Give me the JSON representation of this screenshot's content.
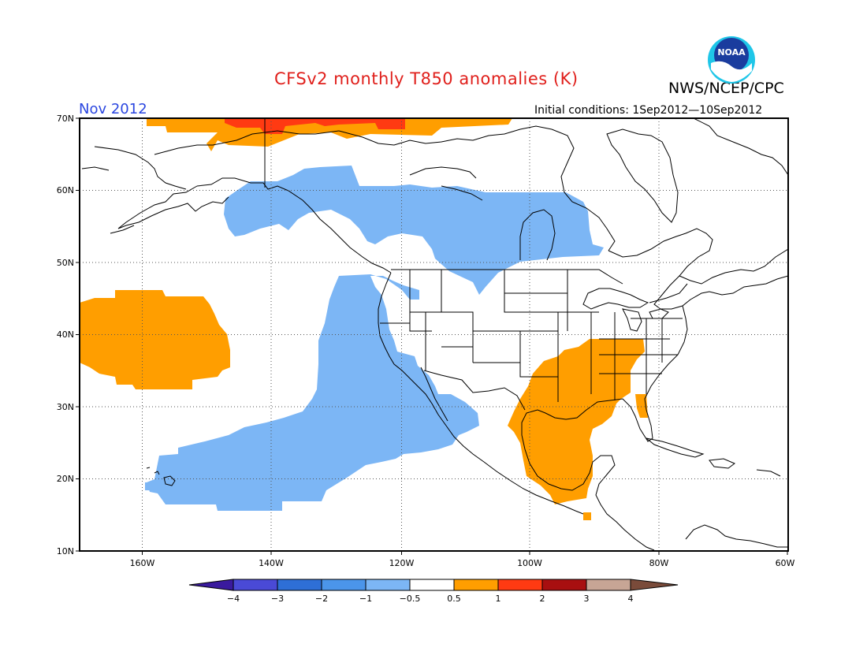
{
  "title": "CFSv2 monthly T850 anomalies (K)",
  "organization": "NWS/NCEP/CPC",
  "logo_text": "NOAA",
  "month_label": "Nov 2012",
  "initial_conditions": "Initial conditions: 1Sep2012—10Sep2012",
  "axes": {
    "lat_labels": [
      "70N",
      "60N",
      "50N",
      "40N",
      "30N",
      "20N",
      "10N"
    ],
    "lon_labels": [
      "160W",
      "140W",
      "120W",
      "100W",
      "80W",
      "60W"
    ]
  },
  "colorbar": {
    "labels": [
      "−4",
      "−3",
      "−2",
      "−1",
      "−0.5",
      "0.5",
      "1",
      "2",
      "3",
      "4"
    ],
    "colors": [
      "#3a1a9e",
      "#4a4ad6",
      "#2e6fd6",
      "#4b95ea",
      "#7cb6f5",
      "#ffffff",
      "#ff9e00",
      "#ff3a12",
      "#a80f10",
      "#c7a595",
      "#7a4b3a"
    ]
  },
  "legend_colors": {
    "cool": "#7cb6f5",
    "warm": "#ff9e00",
    "hot": "#ff3a12"
  }
}
